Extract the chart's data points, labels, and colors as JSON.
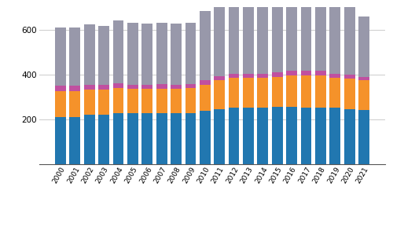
{
  "years": [
    2000,
    2001,
    2002,
    2003,
    2004,
    2005,
    2006,
    2007,
    2008,
    2009,
    2010,
    2011,
    2012,
    2013,
    2014,
    2015,
    2016,
    2017,
    2018,
    2019,
    2020,
    2021
  ],
  "matkustaja": [
    212,
    212,
    222,
    222,
    228,
    228,
    228,
    228,
    228,
    228,
    238,
    248,
    255,
    255,
    255,
    257,
    257,
    255,
    255,
    252,
    248,
    243
  ],
  "kuivalasti": [
    115,
    115,
    112,
    112,
    112,
    108,
    108,
    108,
    108,
    112,
    118,
    128,
    132,
    130,
    130,
    132,
    140,
    140,
    140,
    135,
    135,
    132
  ],
  "sailio": [
    25,
    25,
    22,
    22,
    22,
    18,
    18,
    22,
    18,
    18,
    18,
    18,
    18,
    20,
    18,
    20,
    22,
    22,
    22,
    18,
    18,
    15
  ],
  "muut": [
    258,
    258,
    268,
    262,
    280,
    278,
    272,
    272,
    275,
    272,
    308,
    328,
    345,
    335,
    345,
    340,
    345,
    335,
    338,
    345,
    345,
    270
  ],
  "colors": {
    "matkustaja": "#2177b0",
    "kuivalasti": "#f5922a",
    "sailio": "#c050a0",
    "muut": "#9898aa"
  },
  "ylim": [
    0,
    700
  ],
  "yticks": [
    200,
    400,
    600
  ],
  "background_color": "#ffffff",
  "grid_color": "#cccccc"
}
